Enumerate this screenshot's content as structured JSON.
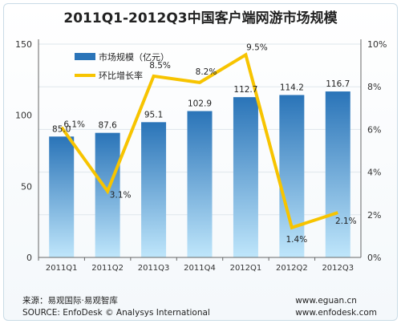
{
  "title": "2011Q1-2012Q3中国客户端网游市场规模",
  "footer": {
    "source_cn": "来源：易观国际·易观智库",
    "source_en": "SOURCE: EnfoDesk © Analysys International",
    "url1": "www.eguan.cn",
    "url2": "www.enfodesk.com"
  },
  "chart_data": {
    "type": "bar",
    "categories": [
      "2011Q1",
      "2011Q2",
      "2011Q3",
      "2011Q4",
      "2012Q1",
      "2012Q2",
      "2012Q3"
    ],
    "series": [
      {
        "name": "市场规模（亿元）",
        "type": "bar",
        "axis": "left",
        "values": [
          85.0,
          87.6,
          95.1,
          102.9,
          112.7,
          114.2,
          116.7
        ],
        "labels": [
          "85.0",
          "87.6",
          "95.1",
          "102.9",
          "112.7",
          "114.2",
          "116.7"
        ]
      },
      {
        "name": "环比增长率",
        "type": "line",
        "axis": "right",
        "values": [
          6.1,
          3.1,
          8.5,
          8.2,
          9.5,
          1.4,
          2.1
        ],
        "labels": [
          "6.1%",
          "3.1%",
          "8.5%",
          "8.2%",
          "9.5%",
          "1.4%",
          "2.1%"
        ]
      }
    ],
    "ylim": [
      0,
      150
    ],
    "yticks": [
      "0",
      "50",
      "100",
      "150"
    ],
    "ylim_right": [
      0,
      10
    ],
    "yticks_right": [
      "0%",
      "2%",
      "4%",
      "6%",
      "8%",
      "10%"
    ],
    "legend_position": "top-left",
    "grid": true,
    "colors": {
      "bar_top": "#2a74b8",
      "bar_bottom": "#bfe6fb",
      "line": "#f7c400",
      "grid": "#dfe6ec"
    }
  }
}
